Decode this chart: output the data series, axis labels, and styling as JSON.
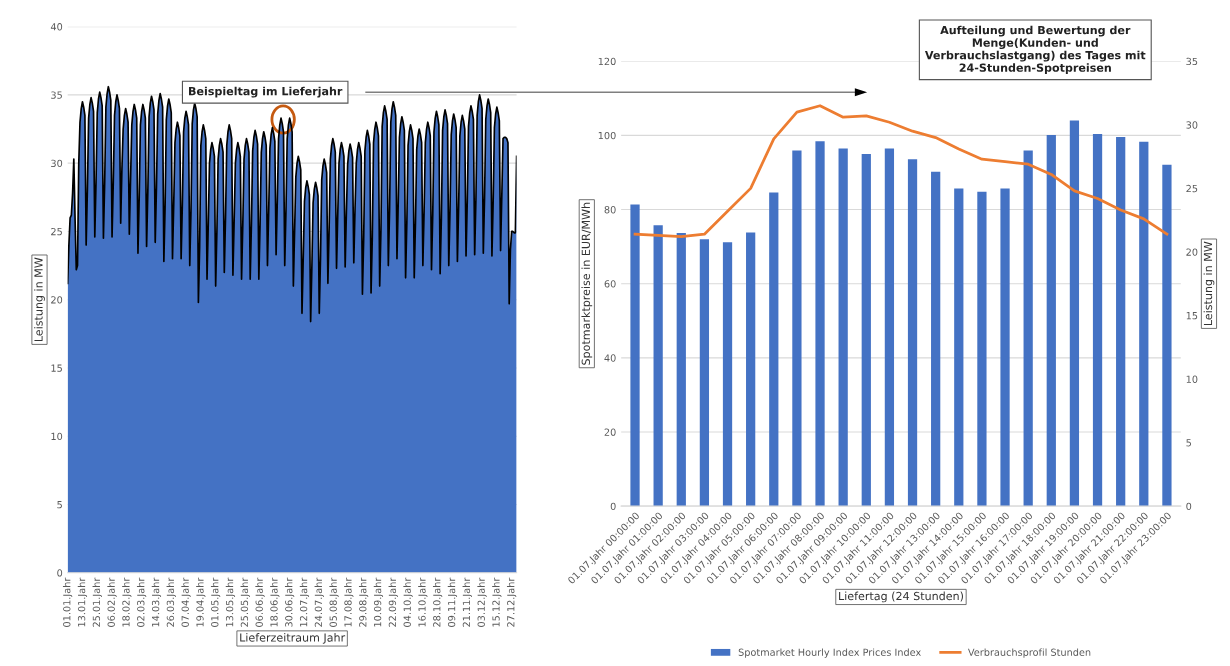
{
  "chart_data": [
    {
      "type": "area",
      "xlabel": "Lieferzeitraum Jahr",
      "ylabel": "Leistung in MW",
      "ylim": [
        0,
        40
      ],
      "yticks": [
        0,
        5,
        10,
        15,
        20,
        25,
        30,
        35,
        40
      ],
      "categories": [
        "01.01.Jahr",
        null,
        null,
        null,
        null,
        null,
        null,
        null,
        null,
        null,
        null,
        null,
        "13.01.Jahr",
        null,
        null,
        null,
        null,
        null,
        null,
        null,
        null,
        null,
        null,
        null,
        "25.01.Jahr",
        null,
        null,
        null,
        null,
        null,
        null,
        null,
        null,
        null,
        null,
        null,
        "06.02.Jahr",
        null,
        null,
        null,
        null,
        null,
        null,
        null,
        null,
        null,
        null,
        null,
        "18.02.Jahr",
        null,
        null,
        null,
        null,
        null,
        null,
        null,
        null,
        null,
        null,
        null,
        "02.03.Jahr",
        null,
        null,
        null,
        null,
        null,
        null,
        null,
        null,
        null,
        null,
        null,
        "14.03.Jahr",
        null,
        null,
        null,
        null,
        null,
        null,
        null,
        null,
        null,
        null,
        null,
        "26.03.Jahr",
        null,
        null,
        null,
        null,
        null,
        null,
        null,
        null,
        null,
        null,
        null,
        "07.04.Jahr",
        null,
        null,
        null,
        null,
        null,
        null,
        null,
        null,
        null,
        null,
        null,
        "19.04.Jahr",
        null,
        null,
        null,
        null,
        null,
        null,
        null,
        null,
        null,
        null,
        null,
        "01.05.Jahr",
        null,
        null,
        null,
        null,
        null,
        null,
        null,
        null,
        null,
        null,
        null,
        "13.05.Jahr",
        null,
        null,
        null,
        null,
        null,
        null,
        null,
        null,
        null,
        null,
        null,
        "25.05.Jahr",
        null,
        null,
        null,
        null,
        null,
        null,
        null,
        null,
        null,
        null,
        null,
        "06.06.Jahr",
        null,
        null,
        null,
        null,
        null,
        null,
        null,
        null,
        null,
        null,
        null,
        "18.06.Jahr",
        null,
        null,
        null,
        null,
        null,
        null,
        null,
        null,
        null,
        null,
        null,
        "30.06.Jahr",
        null,
        null,
        null,
        null,
        null,
        null,
        null,
        null,
        null,
        null,
        null,
        "12.07.Jahr",
        null,
        null,
        null,
        null,
        null,
        null,
        null,
        null,
        null,
        null,
        null,
        "24.07.Jahr",
        null,
        null,
        null,
        null,
        null,
        null,
        null,
        null,
        null,
        null,
        null,
        "05.08.Jahr",
        null,
        null,
        null,
        null,
        null,
        null,
        null,
        null,
        null,
        null,
        null,
        "17.08.Jahr",
        null,
        null,
        null,
        null,
        null,
        null,
        null,
        null,
        null,
        null,
        null,
        "29.08.Jahr",
        null,
        null,
        null,
        null,
        null,
        null,
        null,
        null,
        null,
        null,
        null,
        "10.09.Jahr",
        null,
        null,
        null,
        null,
        null,
        null,
        null,
        null,
        null,
        null,
        null,
        "22.09.Jahr",
        null,
        null,
        null,
        null,
        null,
        null,
        null,
        null,
        null,
        null,
        null,
        "04.10.Jahr",
        null,
        null,
        null,
        null,
        null,
        null,
        null,
        null,
        null,
        null,
        null,
        "16.10.Jahr",
        null,
        null,
        null,
        null,
        null,
        null,
        null,
        null,
        null,
        null,
        null,
        "28.10.Jahr",
        null,
        null,
        null,
        null,
        null,
        null,
        null,
        null,
        null,
        null,
        null,
        "09.11.Jahr",
        null,
        null,
        null,
        null,
        null,
        null,
        null,
        null,
        null,
        null,
        null,
        "21.11.Jahr",
        null,
        null,
        null,
        null,
        null,
        null,
        null,
        null,
        null,
        null,
        null,
        "03.12.Jahr",
        null,
        null,
        null,
        null,
        null,
        null,
        null,
        null,
        null,
        null,
        null,
        "15.12.Jahr",
        null,
        null,
        null,
        null,
        null,
        null,
        null,
        null,
        null,
        null,
        null,
        "27.12.Jahr",
        null,
        null,
        null,
        null
      ],
      "grid": "y",
      "annotations": [
        "Beispieltag im Lieferjahr"
      ],
      "series": [
        {
          "color": "#4472c4",
          "values": [
            21.2,
            24.0,
            26.0,
            26.2,
            27.8,
            30.3,
            26.0,
            22.2,
            22.5,
            30.0,
            33.0,
            34.0,
            34.5,
            34.1,
            33.5,
            24.0,
            28.0,
            33.3,
            34.3,
            34.8,
            34.4,
            33.8,
            24.6,
            28.6,
            33.7,
            34.7,
            35.2,
            34.8,
            34.2,
            24.5,
            28.5,
            34.1,
            35.1,
            35.6,
            35.2,
            34.6,
            24.6,
            28.6,
            33.5,
            34.5,
            35.0,
            34.6,
            34.0,
            25.6,
            29.6,
            32.5,
            33.5,
            34.0,
            33.6,
            33.0,
            24.8,
            28.8,
            32.8,
            33.8,
            34.3,
            33.9,
            33.3,
            23.4,
            27.4,
            32.8,
            33.8,
            34.3,
            33.9,
            33.3,
            23.9,
            27.9,
            33.4,
            34.4,
            34.9,
            34.5,
            33.9,
            24.2,
            28.2,
            33.6,
            34.6,
            35.1,
            34.7,
            34.1,
            22.8,
            26.8,
            33.2,
            34.2,
            34.7,
            34.3,
            33.7,
            23.0,
            27.0,
            31.5,
            32.5,
            33.0,
            32.6,
            32.0,
            23.0,
            27.0,
            32.3,
            33.3,
            33.8,
            33.4,
            32.8,
            22.5,
            26.5,
            32.9,
            33.9,
            34.4,
            34.0,
            33.4,
            19.8,
            23.8,
            31.3,
            32.3,
            32.8,
            32.4,
            31.8,
            21.5,
            25.5,
            30.0,
            31.0,
            31.5,
            31.1,
            30.5,
            21.0,
            25.0,
            30.3,
            31.3,
            31.8,
            31.4,
            30.8,
            22.0,
            26.0,
            31.3,
            32.3,
            32.8,
            32.4,
            31.8,
            21.8,
            25.8,
            30.0,
            31.0,
            31.5,
            31.1,
            30.5,
            21.5,
            25.5,
            30.3,
            31.3,
            31.8,
            31.4,
            30.8,
            21.5,
            25.5,
            30.9,
            31.9,
            32.4,
            32.0,
            31.4,
            21.5,
            25.5,
            30.8,
            31.8,
            32.3,
            31.9,
            31.3,
            22.5,
            26.5,
            31.1,
            32.1,
            32.6,
            32.2,
            31.6,
            23.3,
            27.3,
            31.8,
            32.8,
            33.3,
            32.9,
            32.3,
            22.5,
            26.5,
            31.8,
            32.8,
            33.3,
            32.9,
            32.3,
            21.0,
            25.0,
            29.0,
            30.0,
            30.5,
            30.1,
            29.5,
            19.0,
            23.0,
            27.2,
            28.2,
            28.7,
            28.3,
            27.7,
            18.4,
            22.4,
            27.1,
            28.1,
            28.6,
            28.2,
            27.6,
            19.0,
            23.0,
            28.8,
            29.8,
            30.3,
            29.9,
            29.3,
            21.2,
            25.2,
            30.3,
            31.3,
            31.8,
            31.4,
            30.8,
            22.3,
            26.3,
            30.0,
            31.0,
            31.5,
            31.1,
            30.5,
            22.4,
            26.4,
            29.9,
            30.9,
            31.4,
            31.0,
            30.4,
            22.7,
            26.7,
            30.0,
            31.0,
            31.5,
            31.1,
            30.5,
            20.4,
            24.4,
            30.9,
            31.9,
            32.4,
            32.0,
            31.4,
            20.5,
            24.5,
            31.5,
            32.5,
            33.0,
            32.6,
            32.0,
            21.0,
            25.0,
            32.7,
            33.7,
            34.2,
            33.8,
            33.2,
            22.5,
            26.5,
            33.0,
            34.0,
            34.5,
            34.1,
            33.5,
            23.0,
            27.0,
            31.9,
            32.9,
            33.4,
            33.0,
            32.4,
            21.6,
            25.6,
            31.3,
            32.3,
            32.8,
            32.4,
            31.8,
            21.6,
            25.6,
            31.0,
            32.0,
            32.5,
            32.1,
            31.5,
            22.5,
            26.5,
            31.5,
            32.5,
            33.0,
            32.6,
            32.0,
            22.2,
            26.2,
            32.3,
            33.3,
            33.8,
            33.4,
            32.8,
            21.9,
            25.9,
            32.4,
            33.4,
            33.9,
            33.5,
            32.9,
            22.5,
            26.5,
            32.1,
            33.1,
            33.6,
            33.2,
            32.6,
            22.8,
            26.8,
            32.0,
            33.0,
            33.5,
            33.1,
            32.5,
            23.2,
            27.2,
            32.7,
            33.7,
            34.2,
            33.8,
            33.2,
            23.3,
            27.3,
            33.5,
            34.5,
            35.0,
            34.6,
            34.0,
            23.4,
            27.4,
            33.2,
            34.2,
            34.7,
            34.3,
            33.7,
            23.2,
            27.2,
            32.6,
            33.6,
            34.1,
            33.7,
            33.1,
            23.6,
            27.6,
            31.8,
            31.9,
            31.9,
            31.8,
            31.5,
            19.7,
            23.7,
            25.0,
            25.0,
            24.9,
            24.9,
            30.5
          ]
        }
      ]
    },
    {
      "type": "bar",
      "xlabel": "Liefertag (24 Stunden)",
      "ylabel": "Spotmarktpreise in EUR/MWh",
      "y2label": "Leistung in MW",
      "categories": [
        "01.07.Jahr 00:00:00",
        "01.07.Jahr 01:00:00",
        "01.07.Jahr 02:00:00",
        "01.07.Jahr 03:00:00",
        "01.07.Jahr 04:00:00",
        "01.07.Jahr 05:00:00",
        "01.07.Jahr 06:00:00",
        "01.07.Jahr 07:00:00",
        "01.07.Jahr 08:00:00",
        "01.07.Jahr 09:00:00",
        "01.07.Jahr 10:00:00",
        "01.07.Jahr 11:00:00",
        "01.07.Jahr 12:00:00",
        "01.07.Jahr 13:00:00",
        "01.07.Jahr 14:00:00",
        "01.07.Jahr 15:00:00",
        "01.07.Jahr 16:00:00",
        "01.07.Jahr 17:00:00",
        "01.07.Jahr 18:00:00",
        "01.07.Jahr 19:00:00",
        "01.07.Jahr 20:00:00",
        "01.07.Jahr 21:00:00",
        "01.07.Jahr 22:00:00",
        "01.07.Jahr 23:00:00"
      ],
      "ylim": [
        0,
        120
      ],
      "yticks": [
        0,
        20,
        40,
        60,
        80,
        100,
        120
      ],
      "y2lim": [
        0,
        35
      ],
      "y2ticks": [
        0,
        5,
        10,
        15,
        20,
        25,
        30,
        35
      ],
      "grid": "y",
      "legend": "bottom",
      "annotations": [
        "Aufteilung und Bewertung der Menge(Kunden- und Verbrauchslastgang) des Tages mit 24-Stunden-Spotpreisen"
      ],
      "series": [
        {
          "name": "Spotmarket Hourly Index Prices Index",
          "color": "#4472c4",
          "values": [
            81.4,
            75.8,
            73.7,
            72.0,
            71.2,
            73.8,
            84.6,
            95.9,
            98.4,
            96.5,
            95.0,
            96.5,
            93.6,
            90.2,
            85.7,
            84.8,
            85.7,
            95.9,
            100.1,
            104.0,
            100.4,
            99.6,
            98.3,
            92.1
          ]
        },
        {
          "type": "line",
          "axis": "y2",
          "name": "Verbrauchsprofil Stunden",
          "color": "#ed7d31",
          "values": [
            21.4,
            21.3,
            21.2,
            21.4,
            23.2,
            25.0,
            28.9,
            31.0,
            31.5,
            30.6,
            30.7,
            30.2,
            29.5,
            29.0,
            28.1,
            27.3,
            27.1,
            26.9,
            26.1,
            24.8,
            24.2,
            23.3,
            22.6,
            21.4
          ]
        }
      ]
    }
  ]
}
